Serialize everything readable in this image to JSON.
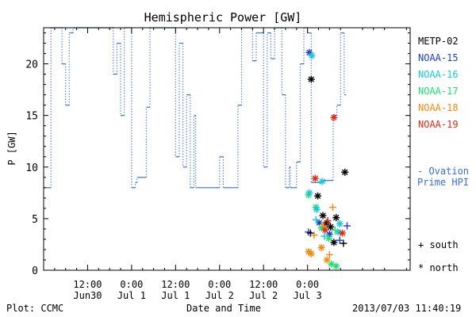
{
  "chart_data": {
    "type": "scatter",
    "title": "Hemispheric Power [GW]",
    "xlabel": "Date and Time",
    "ylabel": "P [GW]",
    "xlim": [
      -12,
      88
    ],
    "ylim": [
      0,
      23.5
    ],
    "x_ticks": [
      {
        "value": 0,
        "line1": "12:00",
        "line2": "Jun30"
      },
      {
        "value": 12,
        "line1": "0:00",
        "line2": "Jul 1"
      },
      {
        "value": 24,
        "line1": "12:00",
        "line2": "Jul 1"
      },
      {
        "value": 36,
        "line1": "0:00",
        "line2": "Jul 2"
      },
      {
        "value": 48,
        "line1": "12:00",
        "line2": "Jul 2"
      },
      {
        "value": 60,
        "line1": "0:00",
        "line2": "Jul 3"
      }
    ],
    "y_ticks": [
      0,
      5,
      10,
      15,
      20
    ],
    "footer_left": "Plot: CCMC",
    "footer_right": "2013/07/03 11:40:19",
    "ovation": {
      "name": "Ovation Prime HPI",
      "label_line1": "- Ovation",
      "label_line2": "Prime HPI",
      "color": "#3a6fd8",
      "points": [
        [
          -12,
          8
        ],
        [
          -10,
          8
        ],
        [
          -10,
          23.5
        ],
        [
          -7,
          23.5
        ],
        [
          -7,
          20
        ],
        [
          -6,
          20
        ],
        [
          -6,
          16
        ],
        [
          -5,
          16
        ],
        [
          -5,
          23
        ],
        [
          -4,
          23
        ],
        [
          -4,
          23.5
        ],
        [
          7,
          23.5
        ],
        [
          7,
          19
        ],
        [
          8,
          19
        ],
        [
          8,
          22
        ],
        [
          9,
          22
        ],
        [
          9,
          15
        ],
        [
          10,
          15
        ],
        [
          10,
          23.5
        ],
        [
          12,
          23.5
        ],
        [
          12,
          8
        ],
        [
          13,
          8
        ],
        [
          13,
          8.5
        ],
        [
          13.5,
          8.5
        ],
        [
          13.5,
          9
        ],
        [
          16,
          9
        ],
        [
          16,
          15.8
        ],
        [
          17,
          15.8
        ],
        [
          17,
          23.5
        ],
        [
          24,
          23.5
        ],
        [
          24,
          11
        ],
        [
          25,
          11
        ],
        [
          25,
          22
        ],
        [
          26,
          22
        ],
        [
          26,
          10
        ],
        [
          27,
          10
        ],
        [
          27,
          17
        ],
        [
          28,
          17
        ],
        [
          28,
          8
        ],
        [
          29,
          8
        ],
        [
          29,
          15
        ],
        [
          29.5,
          15
        ],
        [
          29.5,
          8
        ],
        [
          35,
          8
        ],
        [
          35,
          8
        ],
        [
          36,
          8
        ],
        [
          36,
          11
        ],
        [
          37,
          11
        ],
        [
          37,
          8
        ],
        [
          41,
          8
        ],
        [
          41,
          16
        ],
        [
          42,
          16
        ],
        [
          42,
          23.5
        ],
        [
          45,
          23.5
        ],
        [
          45,
          20.3
        ],
        [
          46,
          20.3
        ],
        [
          46,
          23
        ],
        [
          48,
          23
        ],
        [
          48,
          10
        ],
        [
          49,
          10
        ],
        [
          49,
          23
        ],
        [
          50,
          23
        ],
        [
          50,
          20.5
        ],
        [
          51,
          20.5
        ],
        [
          51,
          23.5
        ],
        [
          53,
          23.5
        ],
        [
          53,
          17
        ],
        [
          54,
          17
        ],
        [
          54,
          8
        ],
        [
          55,
          8
        ],
        [
          55,
          10
        ],
        [
          55.3,
          10
        ],
        [
          55.3,
          8
        ],
        [
          56,
          8
        ],
        [
          56,
          8
        ],
        [
          57,
          8
        ],
        [
          57,
          10.5
        ],
        [
          58,
          10.5
        ],
        [
          58,
          20
        ],
        [
          59,
          20
        ],
        [
          59,
          23.5
        ],
        [
          60,
          23.5
        ],
        [
          60,
          23
        ],
        [
          61,
          23
        ],
        [
          61,
          8.5
        ],
        [
          64,
          8.5
        ],
        [
          64,
          8.7
        ],
        [
          67,
          8.7
        ],
        [
          67,
          15
        ],
        [
          68,
          15
        ],
        [
          68,
          16
        ],
        [
          69,
          16
        ],
        [
          69,
          23
        ],
        [
          70,
          23
        ],
        [
          70,
          17
        ],
        [
          70.5,
          17
        ]
      ]
    },
    "series": [
      {
        "name": "METP-02",
        "color": "#000000"
      },
      {
        "name": "NOAA-15",
        "color": "#1f3fc8"
      },
      {
        "name": "NOAA-16",
        "color": "#19c8d8"
      },
      {
        "name": "NOAA-17",
        "color": "#22e070"
      },
      {
        "name": "NOAA-18",
        "color": "#f08c14"
      },
      {
        "name": "NOAA-19",
        "color": "#e02a14"
      }
    ],
    "points": [
      {
        "s": 1,
        "m": "n",
        "x": 60.5,
        "y": 21.1
      },
      {
        "s": 2,
        "m": "n",
        "x": 61.2,
        "y": 20.8
      },
      {
        "s": 0,
        "m": "n",
        "x": 61.0,
        "y": 18.5
      },
      {
        "s": 5,
        "m": "n",
        "x": 67.2,
        "y": 14.8
      },
      {
        "s": 0,
        "m": "n",
        "x": 70.2,
        "y": 9.5
      },
      {
        "s": 5,
        "m": "n",
        "x": 62.1,
        "y": 8.9
      },
      {
        "s": 2,
        "m": "n",
        "x": 64.0,
        "y": 8.6
      },
      {
        "s": 3,
        "m": "n",
        "x": 60.3,
        "y": 7.3
      },
      {
        "s": 0,
        "m": "n",
        "x": 62.8,
        "y": 7.2
      },
      {
        "s": 2,
        "m": "n",
        "x": 60.5,
        "y": 7.5
      },
      {
        "s": 3,
        "m": "n",
        "x": 62.3,
        "y": 6.1
      },
      {
        "s": 2,
        "m": "n",
        "x": 62.5,
        "y": 5.9
      },
      {
        "s": 0,
        "m": "n",
        "x": 64.2,
        "y": 5.3
      },
      {
        "s": 0,
        "m": "n",
        "x": 66.3,
        "y": 4.2
      },
      {
        "s": 1,
        "m": "n",
        "x": 63.2,
        "y": 4.6
      },
      {
        "s": 3,
        "m": "n",
        "x": 63.8,
        "y": 4.1
      },
      {
        "s": 4,
        "m": "n",
        "x": 64.5,
        "y": 4.4
      },
      {
        "s": 5,
        "m": "n",
        "x": 64.8,
        "y": 3.9
      },
      {
        "s": 0,
        "m": "n",
        "x": 65.3,
        "y": 4.6
      },
      {
        "s": 1,
        "m": "n",
        "x": 66.0,
        "y": 3.5
      },
      {
        "s": 0,
        "m": "n",
        "x": 67.8,
        "y": 5.1
      },
      {
        "s": 2,
        "m": "n",
        "x": 68.3,
        "y": 3.7
      },
      {
        "s": 5,
        "m": "n",
        "x": 69.5,
        "y": 3.6
      },
      {
        "s": 0,
        "m": "n",
        "x": 67.2,
        "y": 2.7
      },
      {
        "s": 3,
        "m": "n",
        "x": 65.8,
        "y": 3.1
      },
      {
        "s": 4,
        "m": "n",
        "x": 60.3,
        "y": 1.8
      },
      {
        "s": 4,
        "m": "n",
        "x": 61.0,
        "y": 1.6
      },
      {
        "s": 4,
        "m": "n",
        "x": 63.8,
        "y": 2.2
      },
      {
        "s": 2,
        "m": "n",
        "x": 68.8,
        "y": 4.5
      },
      {
        "s": 3,
        "m": "n",
        "x": 66.5,
        "y": 0.6
      },
      {
        "s": 3,
        "m": "n",
        "x": 67.8,
        "y": 0.4
      },
      {
        "s": 4,
        "m": "n",
        "x": 65.3,
        "y": 1.0
      },
      {
        "s": 1,
        "m": "s",
        "x": 60.2,
        "y": 3.7
      },
      {
        "s": 0,
        "m": "s",
        "x": 60.8,
        "y": 3.6
      },
      {
        "s": 4,
        "m": "s",
        "x": 61.8,
        "y": 3.4
      },
      {
        "s": 2,
        "m": "s",
        "x": 62.3,
        "y": 4.9
      },
      {
        "s": 4,
        "m": "s",
        "x": 66.9,
        "y": 6.1
      },
      {
        "s": 0,
        "m": "s",
        "x": 69.8,
        "y": 2.6
      },
      {
        "s": 1,
        "m": "s",
        "x": 70.8,
        "y": 4.3
      },
      {
        "s": 2,
        "m": "s",
        "x": 64.6,
        "y": 3.3
      },
      {
        "s": 5,
        "m": "s",
        "x": 65.5,
        "y": 4.8
      },
      {
        "s": 3,
        "m": "s",
        "x": 67.5,
        "y": 3.9
      },
      {
        "s": 4,
        "m": "s",
        "x": 66.0,
        "y": 1.5
      },
      {
        "s": 1,
        "m": "s",
        "x": 68.8,
        "y": 2.9
      }
    ],
    "marker_legend": [
      {
        "symbol": "+",
        "label": "south"
      },
      {
        "symbol": "*",
        "label": "north"
      }
    ],
    "grid": false,
    "legend_position": "right"
  }
}
